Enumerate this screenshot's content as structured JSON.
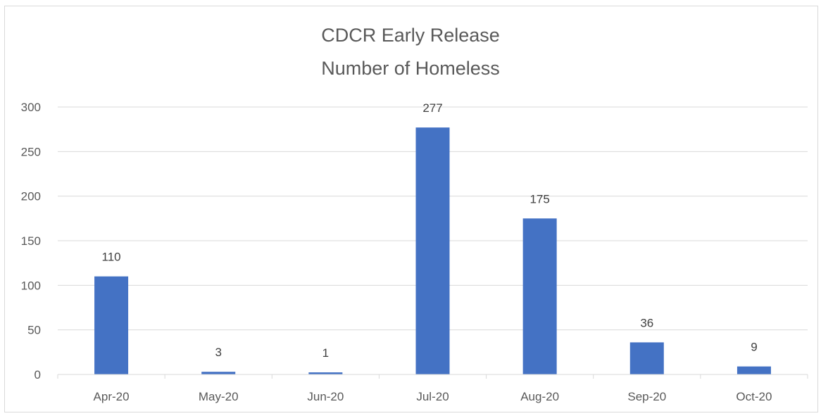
{
  "chart_data": {
    "type": "bar",
    "title": "CDCR Early Release",
    "subtitle": "Number of Homeless",
    "categories": [
      "Apr-20",
      "May-20",
      "Jun-20",
      "Jul-20",
      "Aug-20",
      "Sep-20",
      "Oct-20"
    ],
    "values": [
      110,
      3,
      1,
      277,
      175,
      36,
      9
    ],
    "xlabel": "",
    "ylabel": "",
    "ylim": [
      0,
      300
    ],
    "yticks": [
      0,
      50,
      100,
      150,
      200,
      250,
      300
    ],
    "grid": true,
    "legend": "none",
    "bar_color": "#4472c4",
    "grid_color": "#d9d9d9"
  }
}
